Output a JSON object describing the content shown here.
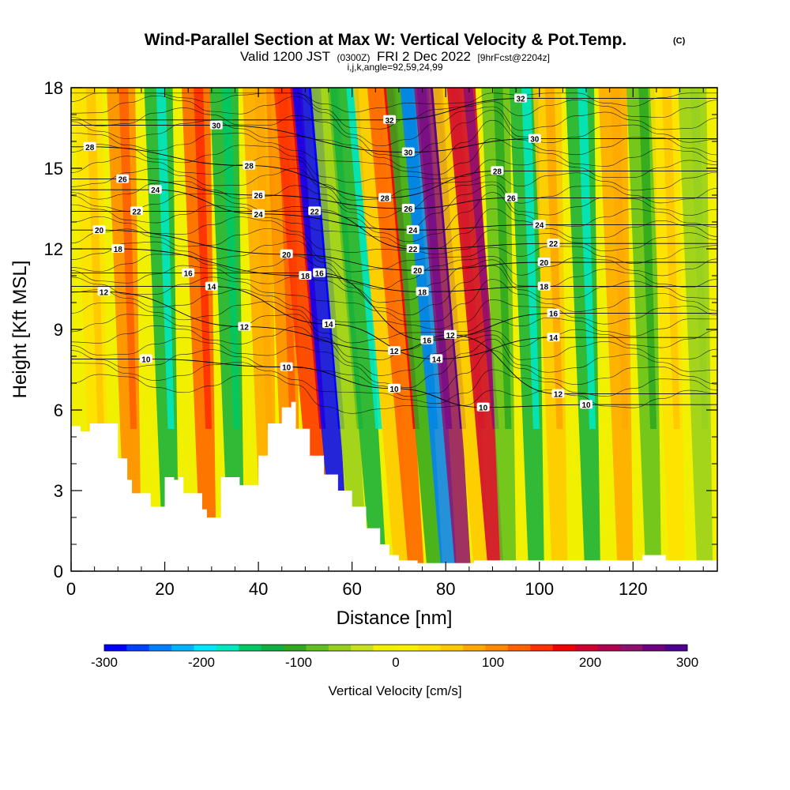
{
  "title": {
    "main": "Wind-Parallel Section at Max W: Vertical Velocity & Pot.Temp.",
    "mark": "(C)",
    "valid_prefix": "Valid 1200 JST",
    "valid_z": "(0300Z)",
    "valid_date": "FRI 2 Dec 2022",
    "fcst": "[9hrFcst@2204z]",
    "indices": "i,j,k,angle=92,59,24,99"
  },
  "chart_data": {
    "type": "heatmap",
    "xlabel": "Distance [nm]",
    "ylabel": "Height [Kft MSL]",
    "xlim": [
      0,
      138
    ],
    "ylim": [
      0,
      18
    ],
    "x_ticks": [
      "0",
      "20",
      "40",
      "60",
      "80",
      "100",
      "120"
    ],
    "y_ticks": [
      "0",
      "3",
      "6",
      "9",
      "12",
      "15",
      "18"
    ],
    "colorbar": {
      "label": "Vertical Velocity [cm/s]",
      "range": [
        -300,
        300
      ],
      "tick_labels": [
        "-300",
        "-200",
        "-100",
        "0",
        "100",
        "200",
        "300"
      ],
      "colors": [
        "#0000ff",
        "#0040ff",
        "#0080ff",
        "#00b4ff",
        "#00e6ff",
        "#00e8c0",
        "#00c864",
        "#10b040",
        "#30a820",
        "#60c020",
        "#98d020",
        "#c8e020",
        "#f0f000",
        "#f8f000",
        "#ffe000",
        "#ffc800",
        "#ffa800",
        "#ff8800",
        "#ff6000",
        "#ff3000",
        "#f00000",
        "#d00030",
        "#b00050",
        "#901070",
        "#700080",
        "#500090"
      ]
    },
    "terrain_top_kft": [
      [
        0,
        5.4
      ],
      [
        2,
        5.2
      ],
      [
        4,
        5.5
      ],
      [
        8,
        5.5
      ],
      [
        10,
        4.2
      ],
      [
        12,
        3.4
      ],
      [
        13,
        2.9
      ],
      [
        16,
        2.9
      ],
      [
        17,
        2.4
      ],
      [
        19,
        2.4
      ],
      [
        20,
        3.5
      ],
      [
        22,
        3.4
      ],
      [
        23,
        3.5
      ],
      [
        24,
        2.9
      ],
      [
        26,
        2.9
      ],
      [
        28,
        2.3
      ],
      [
        29,
        2.0
      ],
      [
        31,
        2.0
      ],
      [
        32,
        3.5
      ],
      [
        36,
        3.2
      ],
      [
        40,
        4.3
      ],
      [
        42,
        5.5
      ],
      [
        45,
        6.1
      ],
      [
        47,
        6.3
      ],
      [
        48,
        5.3
      ],
      [
        51,
        4.3
      ],
      [
        54,
        3.6
      ],
      [
        57,
        3.0
      ],
      [
        60,
        2.4
      ],
      [
        63,
        1.6
      ],
      [
        66,
        1.0
      ],
      [
        68,
        0.6
      ],
      [
        70,
        0.4
      ],
      [
        72,
        0.4
      ],
      [
        74,
        0.3
      ],
      [
        78,
        0.3
      ],
      [
        86,
        0.4
      ],
      [
        90,
        0.4
      ],
      [
        96,
        0.4
      ],
      [
        110,
        0.4
      ],
      [
        121,
        0.4
      ],
      [
        122,
        0.6
      ],
      [
        126,
        0.6
      ],
      [
        127,
        0.4
      ],
      [
        138,
        0.4
      ]
    ],
    "vertical_velocity_bands": [
      {
        "x": 5,
        "w_cm_s": 40
      },
      {
        "x": 12,
        "w_cm_s": 110
      },
      {
        "x": 20,
        "w_cm_s": -130
      },
      {
        "x": 28,
        "w_cm_s": 120
      },
      {
        "x": 34,
        "w_cm_s": -120
      },
      {
        "x": 41,
        "w_cm_s": 70
      },
      {
        "x": 46,
        "w_cm_s": 110
      },
      {
        "x": 50,
        "w_cm_s": 150
      },
      {
        "x": 54,
        "w_cm_s": -300
      },
      {
        "x": 58,
        "w_cm_s": -60
      },
      {
        "x": 62,
        "w_cm_s": -130
      },
      {
        "x": 67,
        "w_cm_s": 50
      },
      {
        "x": 70,
        "w_cm_s": 130
      },
      {
        "x": 74,
        "w_cm_s": -100
      },
      {
        "x": 77,
        "w_cm_s": -240
      },
      {
        "x": 80,
        "w_cm_s": 250
      },
      {
        "x": 84,
        "w_cm_s": 60
      },
      {
        "x": 87,
        "w_cm_s": 200
      },
      {
        "x": 92,
        "w_cm_s": -80
      },
      {
        "x": 98,
        "w_cm_s": -130
      },
      {
        "x": 103,
        "w_cm_s": 60
      },
      {
        "x": 110,
        "w_cm_s": -130
      },
      {
        "x": 117,
        "w_cm_s": 70
      },
      {
        "x": 123,
        "w_cm_s": -80
      },
      {
        "x": 128,
        "w_cm_s": 40
      },
      {
        "x": 134,
        "w_cm_s": -50
      }
    ],
    "theta_contours_labeled": [
      {
        "value": "10",
        "points": [
          [
            16,
            7.9
          ],
          [
            46,
            7.6
          ],
          [
            69,
            6.8
          ],
          [
            88,
            6.1
          ],
          [
            110,
            6.2
          ]
        ]
      },
      {
        "value": "12",
        "points": [
          [
            7,
            10.4
          ],
          [
            37,
            9.1
          ],
          [
            69,
            8.2
          ],
          [
            81,
            8.8
          ],
          [
            104,
            6.6
          ]
        ]
      },
      {
        "value": "14",
        "points": [
          [
            30,
            10.6
          ],
          [
            55,
            9.2
          ],
          [
            78,
            7.9
          ],
          [
            103,
            8.7
          ]
        ]
      },
      {
        "value": "16",
        "points": [
          [
            25,
            11.1
          ],
          [
            53,
            11.1
          ],
          [
            76,
            8.6
          ],
          [
            103,
            9.6
          ]
        ]
      },
      {
        "value": "18",
        "points": [
          [
            10,
            12.0
          ],
          [
            50,
            11.0
          ],
          [
            75,
            10.4
          ],
          [
            101,
            10.6
          ]
        ]
      },
      {
        "value": "20",
        "points": [
          [
            6,
            12.7
          ],
          [
            46,
            11.8
          ],
          [
            74,
            11.2
          ],
          [
            101,
            11.5
          ]
        ]
      },
      {
        "value": "22",
        "points": [
          [
            14,
            13.4
          ],
          [
            52,
            13.4
          ],
          [
            73,
            12.0
          ],
          [
            103,
            12.2
          ]
        ]
      },
      {
        "value": "24",
        "points": [
          [
            18,
            14.2
          ],
          [
            40,
            13.3
          ],
          [
            73,
            12.7
          ],
          [
            100,
            12.9
          ]
        ]
      },
      {
        "value": "26",
        "points": [
          [
            11,
            14.6
          ],
          [
            40,
            14.0
          ],
          [
            72,
            13.5
          ],
          [
            94,
            13.9
          ]
        ]
      },
      {
        "value": "28",
        "points": [
          [
            4,
            15.8
          ],
          [
            38,
            15.1
          ],
          [
            67,
            13.9
          ],
          [
            91,
            14.9
          ]
        ]
      },
      {
        "value": "30",
        "points": [
          [
            31,
            16.6
          ],
          [
            72,
            15.6
          ],
          [
            99,
            16.1
          ]
        ]
      },
      {
        "value": "32",
        "points": [
          [
            68,
            16.8
          ],
          [
            96,
            17.6
          ]
        ]
      }
    ]
  }
}
